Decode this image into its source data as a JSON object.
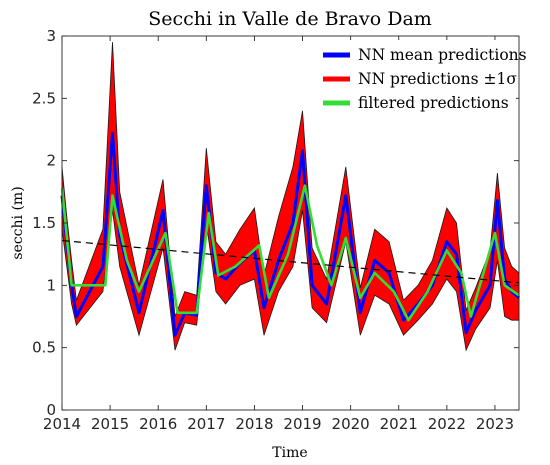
{
  "chart_data": {
    "type": "line",
    "title": "Secchi in Valle de Bravo Dam",
    "xlabel": "Time",
    "ylabel": "secchi (m)",
    "xlim": [
      2014,
      2023.5
    ],
    "ylim": [
      0,
      3
    ],
    "xticks": [
      "2014",
      "2015",
      "2016",
      "2017",
      "2018",
      "2019",
      "2020",
      "2021",
      "2022",
      "2023"
    ],
    "yticks": [
      "0",
      "0.5",
      "1",
      "1.5",
      "2",
      "2.5",
      "3"
    ],
    "grid": false,
    "legend_position": "top-right",
    "legend": [
      "NN mean predictions",
      "NN predictions ±1σ",
      "filtered predictions"
    ],
    "colors": {
      "mean": "#0000ff",
      "band": "#ff0000",
      "filtered": "#33dd33",
      "trend": "#000000"
    },
    "series": [
      {
        "name": "NN mean predictions",
        "x": [
          2014.0,
          2014.1,
          2014.2,
          2014.3,
          2014.85,
          2015.05,
          2015.2,
          2015.6,
          2016.1,
          2016.35,
          2016.55,
          2016.8,
          2017.0,
          2017.2,
          2017.4,
          2017.7,
          2018.0,
          2018.2,
          2018.5,
          2018.8,
          2019.0,
          2019.2,
          2019.5,
          2019.9,
          2020.2,
          2020.5,
          2020.8,
          2021.1,
          2021.4,
          2021.7,
          2022.0,
          2022.2,
          2022.4,
          2022.6,
          2022.9,
          2023.05,
          2023.2,
          2023.35,
          2023.5
        ],
        "y": [
          1.72,
          1.35,
          1.0,
          0.75,
          1.15,
          2.22,
          1.4,
          0.78,
          1.6,
          0.6,
          0.78,
          0.76,
          1.8,
          1.1,
          1.05,
          1.18,
          1.28,
          0.82,
          1.2,
          1.5,
          2.08,
          1.0,
          0.85,
          1.72,
          0.78,
          1.2,
          1.1,
          0.72,
          0.85,
          1.0,
          1.35,
          1.25,
          0.62,
          0.8,
          1.0,
          1.68,
          1.05,
          0.95,
          0.9
        ]
      },
      {
        "name": "NN predictions ±1σ",
        "x": [
          2014.0,
          2014.1,
          2014.2,
          2014.3,
          2014.85,
          2015.05,
          2015.2,
          2015.6,
          2016.1,
          2016.35,
          2016.55,
          2016.8,
          2017.0,
          2017.2,
          2017.4,
          2017.7,
          2018.0,
          2018.2,
          2018.5,
          2018.8,
          2019.0,
          2019.2,
          2019.5,
          2019.9,
          2020.2,
          2020.5,
          2020.8,
          2021.1,
          2021.4,
          2021.7,
          2022.0,
          2022.2,
          2022.4,
          2022.6,
          2022.9,
          2023.05,
          2023.2,
          2023.35,
          2023.5
        ],
        "lower": [
          1.45,
          1.15,
          0.85,
          0.68,
          0.95,
          1.6,
          1.15,
          0.6,
          1.3,
          0.48,
          0.7,
          0.68,
          1.5,
          0.95,
          0.85,
          1.0,
          1.05,
          0.6,
          0.95,
          1.15,
          1.6,
          0.82,
          0.7,
          1.35,
          0.6,
          0.92,
          0.85,
          0.6,
          0.72,
          0.85,
          1.05,
          0.95,
          0.48,
          0.65,
          0.82,
          1.2,
          0.75,
          0.72,
          0.72
        ],
        "upper": [
          1.95,
          1.55,
          1.2,
          0.88,
          1.45,
          2.95,
          1.75,
          1.0,
          1.85,
          0.75,
          0.95,
          0.92,
          2.1,
          1.35,
          1.25,
          1.45,
          1.62,
          1.08,
          1.55,
          1.95,
          2.4,
          1.3,
          1.05,
          1.95,
          0.98,
          1.45,
          1.35,
          0.88,
          1.0,
          1.2,
          1.62,
          1.5,
          0.8,
          0.98,
          1.28,
          1.9,
          1.3,
          1.15,
          1.1
        ]
      },
      {
        "name": "filtered predictions",
        "x": [
          2014.0,
          2014.2,
          2014.9,
          2015.05,
          2015.35,
          2015.6,
          2016.15,
          2016.4,
          2016.8,
          2017.05,
          2017.25,
          2017.6,
          2018.1,
          2018.3,
          2018.7,
          2019.05,
          2019.3,
          2019.6,
          2019.9,
          2020.2,
          2020.5,
          2020.9,
          2021.2,
          2021.6,
          2022.0,
          2022.3,
          2022.5,
          2023.0,
          2023.2,
          2023.5
        ],
        "y": [
          1.78,
          1.0,
          1.0,
          1.72,
          1.2,
          0.95,
          1.42,
          0.78,
          0.78,
          1.58,
          1.08,
          1.15,
          1.32,
          0.9,
          1.25,
          1.8,
          1.32,
          1.0,
          1.38,
          0.9,
          1.1,
          0.95,
          0.72,
          0.95,
          1.28,
          1.1,
          0.75,
          1.42,
          1.0,
          0.92
        ]
      },
      {
        "name": "",
        "x": [
          2014.0,
          2023.5
        ],
        "y": [
          1.36,
          1.02
        ]
      }
    ]
  }
}
